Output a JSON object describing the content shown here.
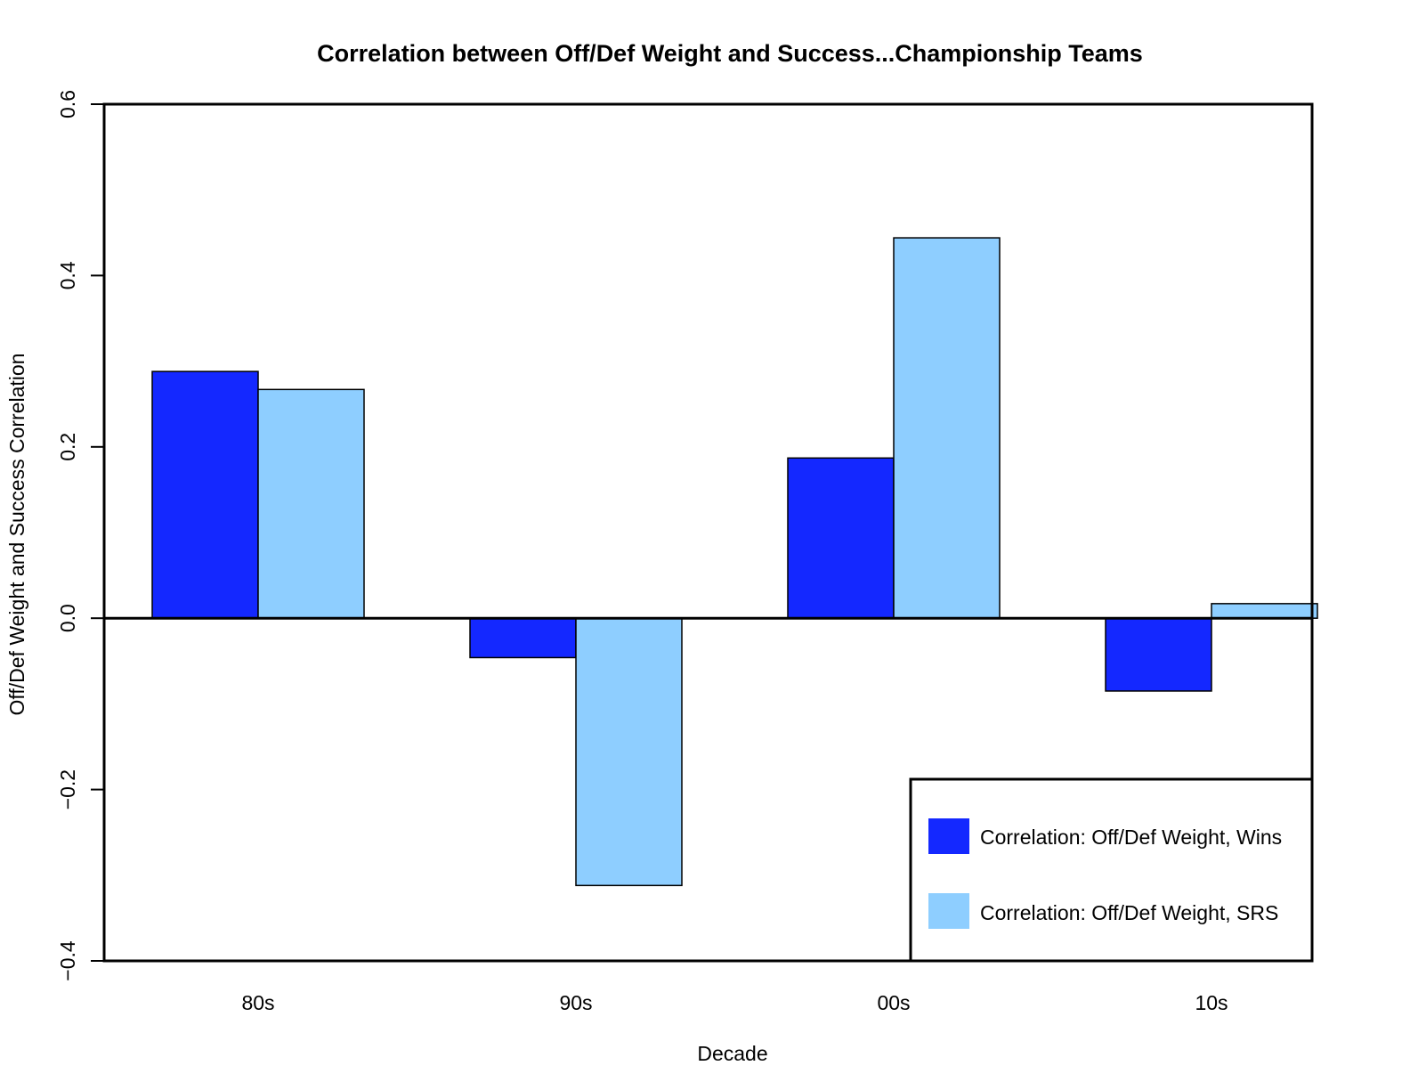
{
  "chart_data": {
    "type": "bar",
    "title": "Correlation between Off/Def Weight and Success...Championship Teams",
    "xlabel": "Decade",
    "ylabel": "Off/Def Weight and Success Correlation",
    "categories": [
      "80s",
      "90s",
      "00s",
      "10s"
    ],
    "series": [
      {
        "name": "Correlation: Off/Def Weight, Wins",
        "color": "#1428FF",
        "values": [
          0.288,
          -0.046,
          0.187,
          -0.085
        ]
      },
      {
        "name": "Correlation: Off/Def Weight, SRS",
        "color": "#8ECEFF",
        "values": [
          0.267,
          -0.312,
          0.444,
          0.017
        ]
      }
    ],
    "ylim": [
      -0.4,
      0.6
    ],
    "yticks": [
      -0.4,
      -0.2,
      0.0,
      0.2,
      0.4,
      0.6
    ],
    "ytick_labels": [
      "−0.4",
      "−0.2",
      "0.0",
      "0.2",
      "0.4",
      "0.6"
    ],
    "grid": false,
    "legend_position": "bottom-right"
  }
}
